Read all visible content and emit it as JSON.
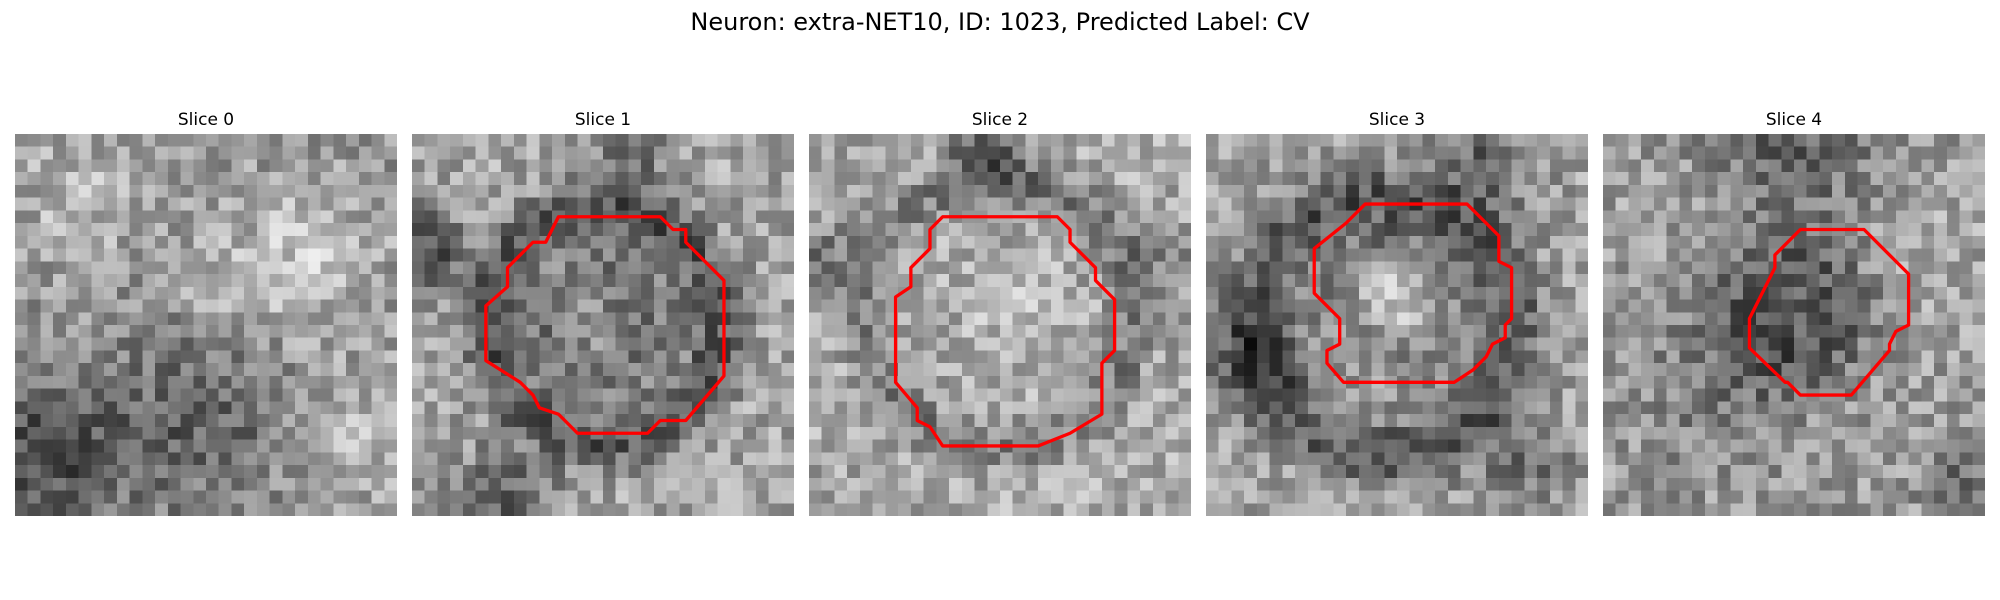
{
  "figure": {
    "title": "Neuron: extra-NET10, ID: 1023, Predicted Label: CV",
    "colormap": "gray",
    "outline_color": "#ff0000"
  },
  "slices": [
    {
      "title": "Slice 0",
      "outline": null
    },
    {
      "title": "Slice 1",
      "outline": {
        "shape": "octagonal contour",
        "color": "#ff0000"
      }
    },
    {
      "title": "Slice 2",
      "outline": {
        "shape": "octagonal contour",
        "color": "#ff0000"
      }
    },
    {
      "title": "Slice 3",
      "outline": {
        "shape": "octagonal contour",
        "color": "#ff0000"
      }
    },
    {
      "title": "Slice 4",
      "outline": {
        "shape": "octagonal contour",
        "color": "#ff0000"
      }
    }
  ]
}
